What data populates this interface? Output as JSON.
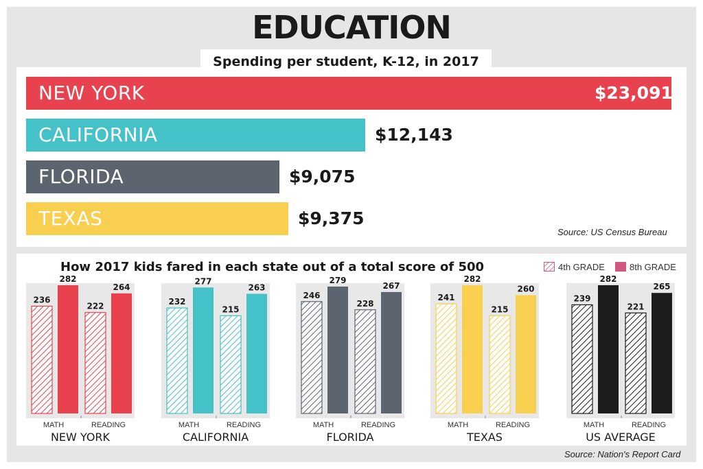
{
  "header": {
    "title": "EDUCATION",
    "subtitle": "Spending per student, K-12, in 2017"
  },
  "spending": {
    "source": "Source: US Census Bureau",
    "chart_data": {
      "type": "bar",
      "orientation": "horizontal",
      "title": "Spending per student, K-12, in 2017",
      "categories": [
        "NEW YORK",
        "CALIFORNIA",
        "FLORIDA",
        "TEXAS"
      ],
      "values": [
        23091,
        12143,
        9075,
        9375
      ],
      "value_labels": [
        "$23,091",
        "$12,143",
        "$9,075",
        "$9,375"
      ],
      "colors": [
        "#e8424f",
        "#45c1c8",
        "#5c6470",
        "#f8cf4f"
      ]
    }
  },
  "scores": {
    "title": "How 2017 kids fared in each state out of a total score of 500",
    "source": "Source: Nation's Report Card",
    "legend": {
      "grade4": "4th GRADE",
      "grade8": "8th GRADE"
    },
    "subjects": [
      "MATH",
      "READING"
    ],
    "chart_data": {
      "type": "bar",
      "title": "How 2017 kids fared in each state out of a total score of 500",
      "groups": [
        {
          "name": "NEW YORK",
          "color": "#e8424f",
          "math": [
            236,
            282
          ],
          "reading": [
            222,
            264
          ]
        },
        {
          "name": "CALIFORNIA",
          "color": "#45c1c8",
          "math": [
            232,
            277
          ],
          "reading": [
            215,
            263
          ]
        },
        {
          "name": "FLORIDA",
          "color": "#5c6470",
          "math": [
            246,
            279
          ],
          "reading": [
            228,
            267
          ]
        },
        {
          "name": "TEXAS",
          "color": "#f8cf4f",
          "math": [
            241,
            282
          ],
          "reading": [
            215,
            260
          ]
        },
        {
          "name": "US AVERAGE",
          "color": "#1c1c1c",
          "math": [
            239,
            282
          ],
          "reading": [
            221,
            265
          ]
        }
      ],
      "series": [
        {
          "name": "4th GRADE",
          "style": "hatched"
        },
        {
          "name": "8th GRADE",
          "style": "solid"
        }
      ],
      "ylim": [
        0,
        300
      ]
    }
  }
}
